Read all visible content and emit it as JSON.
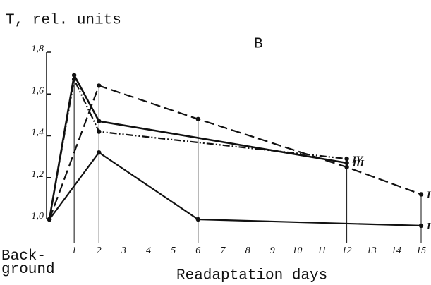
{
  "chart_data": {
    "type": "line",
    "ylabel": "T, rel. units",
    "xlabel": "Readaptation days",
    "annotation": "B",
    "xlim": [
      0,
      15
    ],
    "ylim": [
      1.0,
      1.8
    ],
    "xticks": [
      {
        "value": 0,
        "label": "Back-\nground"
      },
      1,
      2,
      3,
      4,
      5,
      6,
      7,
      8,
      9,
      10,
      11,
      12,
      13,
      14,
      15
    ],
    "yticks": [
      {
        "value": 1.0,
        "label": "1,0"
      },
      {
        "value": 1.2,
        "label": "1,2"
      },
      {
        "value": 1.4,
        "label": "1,4"
      },
      {
        "value": 1.6,
        "label": "1,6"
      },
      {
        "value": 1.8,
        "label": "1,8"
      }
    ],
    "grid": false,
    "series": [
      {
        "name": "I",
        "color": "#111111",
        "dash": "solid",
        "x": [
          0,
          2,
          6,
          15
        ],
        "values": [
          1.0,
          1.32,
          1.0,
          0.97
        ]
      },
      {
        "name": "II",
        "color": "#111111",
        "dash": "dashed",
        "x": [
          0,
          2,
          6,
          12,
          15
        ],
        "values": [
          1.0,
          1.64,
          1.48,
          1.25,
          1.12
        ]
      },
      {
        "name": "III",
        "color": "#111111",
        "dash": "solid",
        "x": [
          0,
          1,
          2,
          12
        ],
        "values": [
          1.0,
          1.69,
          1.47,
          1.27
        ]
      },
      {
        "name": "IV",
        "color": "#111111",
        "dash": "dashdotdot",
        "x": [
          0,
          1,
          2,
          12
        ],
        "values": [
          1.0,
          1.67,
          1.42,
          1.29
        ]
      }
    ]
  }
}
